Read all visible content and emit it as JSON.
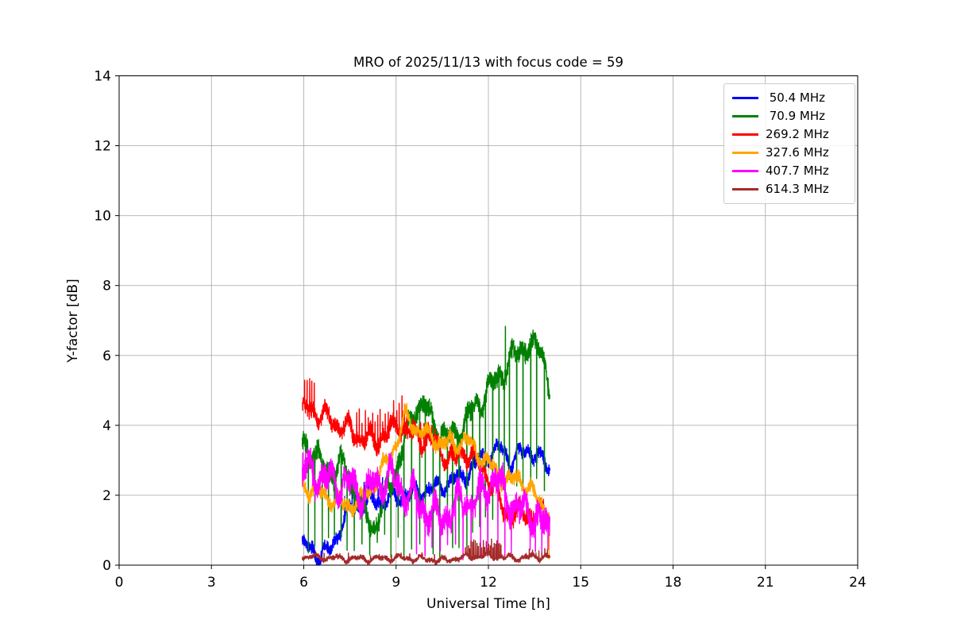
{
  "figure": {
    "background": "#ffffff",
    "title": "MRO of 2025/11/13 with focus code = 59"
  },
  "chart_data": {
    "type": "line",
    "title": "MRO of 2025/11/13 with focus code = 59",
    "xlabel": "Universal Time [h]",
    "ylabel": "Y-factor [dB]",
    "xlim": [
      0,
      24
    ],
    "ylim": [
      0,
      14
    ],
    "xticks": [
      0,
      3,
      6,
      9,
      12,
      15,
      18,
      21,
      24
    ],
    "yticks": [
      0,
      2,
      4,
      6,
      8,
      10,
      12,
      14
    ],
    "grid": true,
    "grid_color": "#b0b0b0",
    "legend_position": "upper right",
    "time_range": [
      5.95,
      14.0
    ],
    "sample_step_h": 0.004,
    "series": [
      {
        "name": "50.4 MHz",
        "label": " 50.4 MHz",
        "color": "#0000ff",
        "noise": 0.22,
        "trend": [
          [
            5.95,
            0.55
          ],
          [
            6.2,
            0.5
          ],
          [
            6.55,
            0.25
          ],
          [
            6.9,
            0.5
          ],
          [
            7.2,
            1.1
          ],
          [
            7.5,
            1.6
          ],
          [
            7.9,
            1.75
          ],
          [
            8.3,
            1.85
          ],
          [
            8.8,
            1.9
          ],
          [
            9.3,
            2.0
          ],
          [
            9.8,
            2.1
          ],
          [
            10.3,
            2.2
          ],
          [
            10.8,
            2.4
          ],
          [
            11.3,
            2.6
          ],
          [
            11.8,
            3.05
          ],
          [
            12.1,
            3.2
          ],
          [
            12.4,
            3.35
          ],
          [
            12.7,
            3.0
          ],
          [
            13.0,
            3.15
          ],
          [
            13.3,
            3.3
          ],
          [
            13.6,
            3.1
          ],
          [
            13.9,
            2.85
          ],
          [
            14,
            2.75
          ]
        ],
        "spike_bands": [
          {
            "from": 7.2,
            "to": 8.7,
            "every": 0.12,
            "type": "up",
            "amp": [
              0.3,
              0.7
            ]
          }
        ]
      },
      {
        "name": "70.9 MHz",
        "label": " 70.9 MHz",
        "color": "#008000",
        "noise": 0.32,
        "trend": [
          [
            5.95,
            3.5
          ],
          [
            6.3,
            3.3
          ],
          [
            6.6,
            2.8
          ],
          [
            7.0,
            2.7
          ],
          [
            7.3,
            2.9
          ],
          [
            7.6,
            2.2
          ],
          [
            8.0,
            1.4
          ],
          [
            8.3,
            1.1
          ],
          [
            8.6,
            1.8
          ],
          [
            9.0,
            2.8
          ],
          [
            9.35,
            3.7
          ],
          [
            9.65,
            4.55
          ],
          [
            9.85,
            4.65
          ],
          [
            10.1,
            4.2
          ],
          [
            10.45,
            3.8
          ],
          [
            10.75,
            3.6
          ],
          [
            11.05,
            3.8
          ],
          [
            11.35,
            4.25
          ],
          [
            11.65,
            4.6
          ],
          [
            12.0,
            5.0
          ],
          [
            12.3,
            5.3
          ],
          [
            12.55,
            5.7
          ],
          [
            12.8,
            5.9
          ],
          [
            13.05,
            6.2
          ],
          [
            13.3,
            6.35
          ],
          [
            13.55,
            6.1
          ],
          [
            13.75,
            6.15
          ],
          [
            13.87,
            5.7
          ],
          [
            14,
            4.9
          ]
        ],
        "spike_bands": [
          {
            "from": 6.1,
            "to": 13.95,
            "every": 0.21,
            "type": "down",
            "floor": [
              0.15,
              0.95
            ],
            "rel_after": 10.8,
            "depth": [
              3.3,
              4.1
            ],
            "min_floor": 0.5
          },
          {
            "at": 12.55,
            "type": "up",
            "amp": [
              1.0,
              1.2
            ]
          }
        ]
      },
      {
        "name": "269.2 MHz",
        "label": "269.2 MHz",
        "color": "#ff0000",
        "noise": 0.27,
        "trend": [
          [
            5.95,
            4.35
          ],
          [
            6.2,
            4.5
          ],
          [
            6.5,
            4.3
          ],
          [
            6.8,
            4.2
          ],
          [
            7.1,
            4.05
          ],
          [
            7.4,
            3.9
          ],
          [
            7.7,
            3.75
          ],
          [
            8.0,
            3.6
          ],
          [
            8.3,
            3.55
          ],
          [
            8.6,
            3.7
          ],
          [
            8.9,
            3.9
          ],
          [
            9.15,
            4.0
          ],
          [
            9.45,
            3.75
          ],
          [
            9.75,
            3.6
          ],
          [
            10.05,
            3.6
          ],
          [
            10.35,
            3.35
          ],
          [
            10.65,
            3.1
          ],
          [
            10.95,
            3.0
          ],
          [
            11.2,
            3.25
          ],
          [
            11.5,
            3.1
          ],
          [
            11.8,
            2.75
          ],
          [
            12.05,
            2.45
          ],
          [
            12.25,
            2.1
          ],
          [
            12.4,
            1.75
          ],
          [
            12.5,
            1.45
          ]
        ],
        "spike_bands": [
          {
            "from": 6.0,
            "to": 6.4,
            "every": 0.07,
            "type": "up",
            "amp": [
              0.5,
              1.0
            ]
          },
          {
            "from": 7.7,
            "to": 9.4,
            "every": 0.09,
            "type": "up",
            "amp": [
              0.4,
              0.9
            ]
          },
          {
            "from": 9.5,
            "to": 10.3,
            "every": 0.12,
            "type": "up",
            "amp": [
              0.3,
              0.5
            ]
          }
        ]
      },
      {
        "name": "327.6 MHz",
        "label": "327.6 MHz",
        "color": "#ffa500",
        "noise": 0.22,
        "trend": [
          [
            5.95,
            2.3
          ],
          [
            6.4,
            2.1
          ],
          [
            6.9,
            1.9
          ],
          [
            7.4,
            1.7
          ],
          [
            7.8,
            1.8
          ],
          [
            8.2,
            2.2
          ],
          [
            8.6,
            2.8
          ],
          [
            9.0,
            3.5
          ],
          [
            9.3,
            4.25
          ],
          [
            9.55,
            4.0
          ],
          [
            9.85,
            3.8
          ],
          [
            10.15,
            3.65
          ],
          [
            10.5,
            3.5
          ],
          [
            10.9,
            3.45
          ],
          [
            11.25,
            3.6
          ],
          [
            11.6,
            3.25
          ],
          [
            11.95,
            2.95
          ],
          [
            12.3,
            2.6
          ],
          [
            12.7,
            2.4
          ],
          [
            13.0,
            2.5
          ],
          [
            13.3,
            2.2
          ],
          [
            13.6,
            1.9
          ],
          [
            13.85,
            1.6
          ],
          [
            14,
            1.4
          ]
        ],
        "spike_bands": [
          {
            "at": 13.97,
            "type": "down",
            "floor": [
              0.15,
              0.2
            ]
          }
        ]
      },
      {
        "name": "407.7 MHz",
        "label": "407.7 MHz",
        "color": "#ff00ff",
        "noise": 0.42,
        "trend": [
          [
            5.95,
            2.7
          ],
          [
            6.4,
            2.6
          ],
          [
            6.8,
            2.45
          ],
          [
            7.2,
            2.3
          ],
          [
            7.6,
            2.2
          ],
          [
            8.0,
            2.05
          ],
          [
            8.4,
            2.35
          ],
          [
            8.8,
            2.5
          ],
          [
            9.2,
            2.2
          ],
          [
            9.6,
            1.9
          ],
          [
            10.0,
            1.55
          ],
          [
            10.4,
            1.35
          ],
          [
            10.8,
            1.55
          ],
          [
            11.2,
            1.9
          ],
          [
            11.6,
            1.75
          ],
          [
            11.95,
            2.3
          ],
          [
            12.2,
            2.5
          ],
          [
            12.5,
            2.1
          ],
          [
            12.8,
            1.7
          ],
          [
            13.1,
            1.5
          ],
          [
            13.4,
            1.55
          ],
          [
            13.7,
            1.2
          ],
          [
            14,
            0.95
          ]
        ],
        "spike_bands": [
          {
            "from": 5.95,
            "to": 6.35,
            "every": 0.08,
            "type": "up",
            "amp": [
              0.4,
              0.8
            ]
          },
          {
            "from": 9.6,
            "to": 12.9,
            "every": 0.28,
            "type": "down",
            "floor": [
              0.15,
              0.6
            ]
          },
          {
            "from": 13.3,
            "to": 13.98,
            "every": 0.2,
            "type": "down",
            "floor": [
              0.2,
              0.5
            ]
          }
        ]
      },
      {
        "name": "614.3 MHz",
        "label": "614.3 MHz",
        "color": "#a52a2a",
        "noise": 0.08,
        "trend": [
          [
            5.95,
            0.24
          ],
          [
            7.0,
            0.2
          ],
          [
            8.0,
            0.18
          ],
          [
            9.0,
            0.2
          ],
          [
            10.0,
            0.17
          ],
          [
            10.6,
            0.13
          ],
          [
            11.0,
            0.2
          ],
          [
            11.5,
            0.25
          ],
          [
            12.0,
            0.26
          ],
          [
            12.5,
            0.22
          ],
          [
            13.0,
            0.2
          ],
          [
            13.5,
            0.24
          ],
          [
            14,
            0.22
          ]
        ],
        "spike_bands": [
          {
            "from": 6.3,
            "to": 11.0,
            "every": 0.35,
            "type": "up",
            "amp": [
              0.08,
              0.18
            ]
          },
          {
            "from": 11.25,
            "to": 12.45,
            "every": 0.045,
            "type": "up",
            "amp": [
              0.2,
              0.5
            ]
          },
          {
            "from": 13.2,
            "to": 13.95,
            "every": 0.1,
            "type": "up",
            "amp": [
              0.1,
              0.25
            ]
          }
        ]
      }
    ]
  }
}
